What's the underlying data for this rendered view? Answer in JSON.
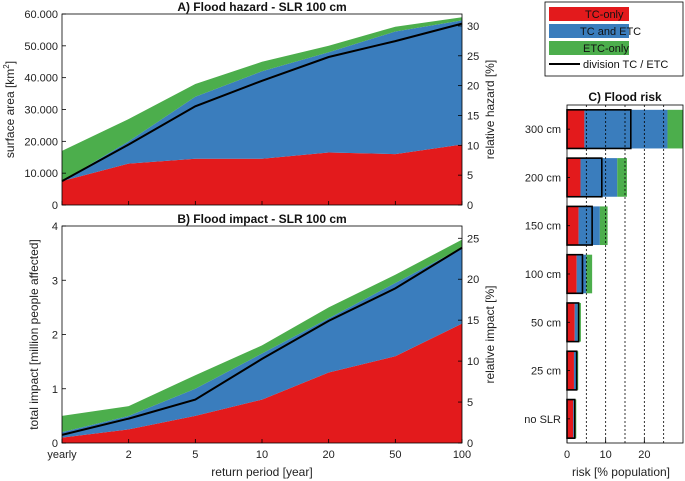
{
  "colors": {
    "tc": "#e31a1c",
    "tcetc": "#3a7dbd",
    "etc": "#4cae4c",
    "division": "#000000"
  },
  "legend": {
    "items": [
      "TC-only",
      "TC and ETC",
      "ETC-only",
      "division TC / ETC"
    ]
  },
  "chart_data": [
    {
      "id": "A",
      "type": "area",
      "title": "A) Flood hazard - SLR 100 cm",
      "ylabel": "surface area [km²]",
      "ylabel_base": "surface area [km",
      "ylabel_sup": "2",
      "ylabel_end": "]",
      "y2label": "relative hazard [%]",
      "categories": [
        "yearly",
        "2",
        "5",
        "10",
        "20",
        "50",
        "100"
      ],
      "ylim": [
        0,
        60000
      ],
      "yticks": [
        "0",
        "10.000",
        "20.000",
        "30.000",
        "40.000",
        "50.000",
        "60.000"
      ],
      "y2lim": [
        0,
        32
      ],
      "y2ticks": [
        "0",
        "5",
        "10",
        "15",
        "20",
        "25",
        "30"
      ],
      "series": [
        {
          "name": "TC-only",
          "values": [
            7500,
            13000,
            14500,
            14500,
            16500,
            16000,
            19000
          ]
        },
        {
          "name": "TC and ETC",
          "values": [
            0,
            7000,
            19500,
            27500,
            31500,
            38500,
            39000
          ]
        },
        {
          "name": "ETC-only",
          "values": [
            9500,
            7000,
            4000,
            3000,
            2000,
            1500,
            1000
          ]
        }
      ],
      "division": [
        7500,
        19000,
        31000,
        39000,
        46500,
        51500,
        57000
      ]
    },
    {
      "id": "B",
      "type": "area",
      "title": "B) Flood impact - SLR 100 cm",
      "ylabel": "total impact [million people affected]",
      "y2label": "relative impact [%]",
      "categories": [
        "yearly",
        "2",
        "5",
        "10",
        "20",
        "50",
        "100"
      ],
      "xlabel": "return period [year]",
      "ylim": [
        0,
        4
      ],
      "yticks": [
        "0",
        "1",
        "2",
        "3",
        "4"
      ],
      "y2lim": [
        0,
        26.5
      ],
      "y2ticks": [
        "0",
        "5",
        "10",
        "15",
        "20",
        "25"
      ],
      "series": [
        {
          "name": "TC-only",
          "values": [
            0.1,
            0.25,
            0.5,
            0.8,
            1.3,
            1.6,
            2.2
          ]
        },
        {
          "name": "TC and ETC",
          "values": [
            0.1,
            0.25,
            0.5,
            0.85,
            1.0,
            1.35,
            1.4
          ]
        },
        {
          "name": "ETC-only",
          "values": [
            0.3,
            0.18,
            0.25,
            0.15,
            0.2,
            0.15,
            0.15
          ]
        }
      ],
      "division": [
        0.15,
        0.45,
        0.8,
        1.55,
        2.25,
        2.85,
        3.6
      ]
    },
    {
      "id": "C",
      "type": "bar",
      "orientation": "horizontal-stacked",
      "title": "C) Flood risk",
      "xlabel": "risk [% population]",
      "categories": [
        "300 cm",
        "200 cm",
        "150 cm",
        "100 cm",
        "50 cm",
        "25 cm",
        "no SLR"
      ],
      "xlim": [
        0,
        30
      ],
      "xticks": [
        "0",
        "10",
        "20"
      ],
      "xtick_values": [
        0,
        10,
        20
      ],
      "dotted_lines": [
        5,
        10,
        15,
        20,
        25
      ],
      "series": [
        {
          "name": "TC-only",
          "values": [
            4.5,
            3.5,
            3.0,
            2.5,
            2.0,
            1.8,
            1.6
          ]
        },
        {
          "name": "TC and ETC",
          "values": [
            21.5,
            9.5,
            5.5,
            2.5,
            0.8,
            0.6,
            0.4
          ]
        },
        {
          "name": "ETC-only",
          "values": [
            4.0,
            2.5,
            2.0,
            1.5,
            0.8,
            0.5,
            0.4
          ]
        }
      ],
      "division": [
        16.5,
        9.0,
        6.5,
        4.0,
        3.0,
        2.5,
        2.0
      ]
    }
  ]
}
